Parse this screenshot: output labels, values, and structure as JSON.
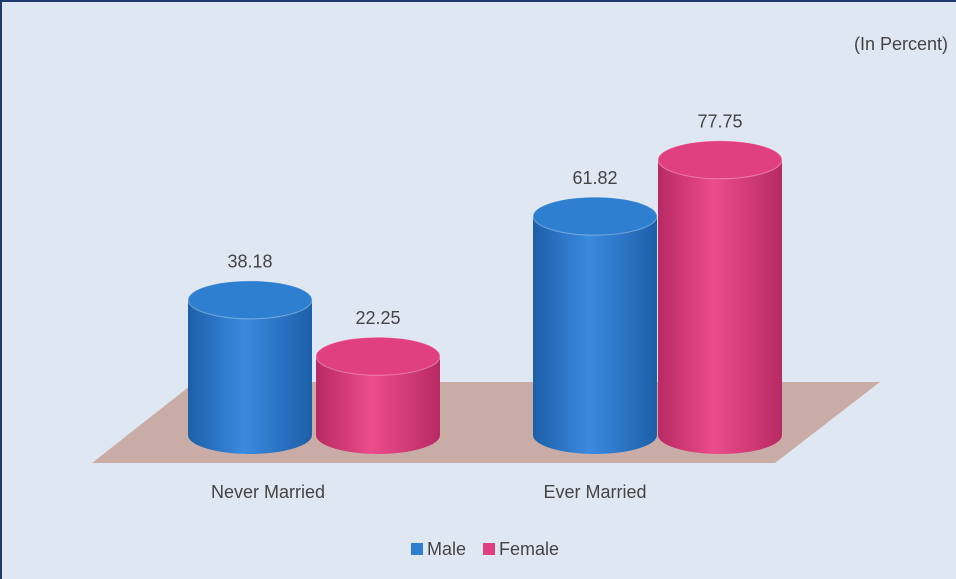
{
  "chart_data": {
    "type": "bar",
    "annotation": "(In Percent)",
    "categories": [
      "Never Married",
      "Ever Married"
    ],
    "series": [
      {
        "name": "Male",
        "color": "#2f7fd0",
        "values": [
          38.18,
          61.82
        ]
      },
      {
        "name": "Female",
        "color": "#e0407f",
        "values": [
          22.25,
          77.75
        ]
      }
    ],
    "ylim": [
      0,
      100
    ],
    "legend": "bottom"
  }
}
